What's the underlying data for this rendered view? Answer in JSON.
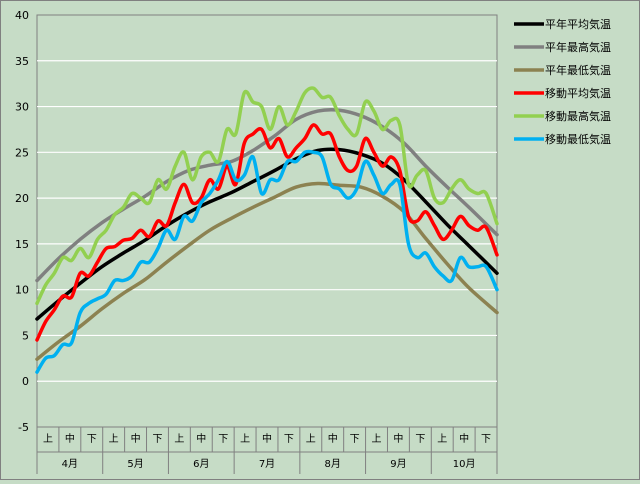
{
  "chart_data": {
    "type": "line",
    "x_unit": "day_of_season",
    "x_range": [
      0,
      213
    ],
    "ylim": [
      -5,
      40
    ],
    "y_ticks": [
      -5,
      0,
      5,
      10,
      15,
      20,
      25,
      30,
      35,
      40
    ],
    "grid": true,
    "legend_position": "right",
    "decade_labels": [
      "上",
      "中",
      "下"
    ],
    "months": [
      "4月",
      "5月",
      "6月",
      "7月",
      "8月",
      "9月",
      "10月"
    ],
    "series": [
      {
        "name": "平年平均気温",
        "color": "#000000",
        "x": [
          0,
          10,
          20,
          30,
          40,
          50,
          60,
          70,
          80,
          90,
          100,
          110,
          120,
          130,
          140,
          150,
          160,
          170,
          180,
          190,
          200,
          213
        ],
        "y": [
          6.8,
          8.8,
          10.7,
          12.5,
          14.0,
          15.4,
          17.0,
          18.4,
          19.6,
          20.6,
          21.8,
          23.0,
          24.3,
          25.2,
          25.3,
          24.8,
          23.8,
          22.0,
          19.6,
          17.1,
          14.8,
          11.8
        ]
      },
      {
        "name": "平年最高気温",
        "color": "#808080",
        "x": [
          0,
          10,
          20,
          30,
          40,
          50,
          60,
          70,
          80,
          90,
          100,
          110,
          120,
          130,
          140,
          150,
          160,
          170,
          180,
          190,
          200,
          213
        ],
        "y": [
          11.0,
          13.4,
          15.5,
          17.3,
          18.8,
          20.2,
          21.8,
          23.0,
          23.6,
          24.0,
          25.2,
          26.8,
          28.6,
          29.5,
          29.6,
          29.0,
          27.8,
          26.0,
          23.5,
          21.2,
          19.0,
          16.0
        ]
      },
      {
        "name": "平年最低気温",
        "color": "#8c8251",
        "x": [
          0,
          10,
          20,
          30,
          40,
          50,
          60,
          70,
          80,
          90,
          100,
          110,
          120,
          130,
          140,
          150,
          160,
          170,
          180,
          190,
          200,
          213
        ],
        "y": [
          2.4,
          4.3,
          6.0,
          7.9,
          9.6,
          11.1,
          13.0,
          14.8,
          16.5,
          17.8,
          19.0,
          20.1,
          21.2,
          21.6,
          21.4,
          21.2,
          20.2,
          18.5,
          15.6,
          12.8,
          10.2,
          7.5
        ]
      },
      {
        "name": "移動平均気温",
        "color": "#ff0000",
        "x": [
          0,
          4,
          8,
          12,
          16,
          20,
          24,
          28,
          32,
          36,
          40,
          44,
          48,
          52,
          56,
          60,
          64,
          68,
          72,
          76,
          80,
          84,
          88,
          92,
          96,
          100,
          104,
          108,
          112,
          116,
          120,
          124,
          128,
          132,
          136,
          140,
          144,
          148,
          152,
          156,
          160,
          164,
          168,
          172,
          176,
          180,
          184,
          188,
          192,
          196,
          200,
          204,
          208,
          213
        ],
        "y": [
          4.5,
          6.5,
          7.8,
          9.3,
          9.2,
          11.8,
          11.5,
          13.0,
          14.5,
          14.7,
          15.4,
          15.6,
          16.5,
          15.8,
          17.5,
          17.0,
          19.5,
          21.5,
          19.5,
          20.0,
          22.0,
          21.0,
          23.5,
          21.5,
          26.0,
          27.0,
          27.5,
          25.5,
          26.5,
          24.5,
          25.5,
          26.5,
          28.0,
          27.0,
          27.0,
          24.5,
          23.0,
          23.5,
          26.5,
          25.0,
          23.5,
          24.5,
          23.0,
          18.0,
          17.5,
          18.5,
          17.0,
          15.5,
          16.5,
          18.0,
          17.0,
          16.5,
          16.8,
          13.8
        ]
      },
      {
        "name": "移動最高気温",
        "color": "#92d050",
        "x": [
          0,
          4,
          8,
          12,
          16,
          20,
          24,
          28,
          32,
          36,
          40,
          44,
          48,
          52,
          56,
          60,
          64,
          68,
          72,
          76,
          80,
          84,
          88,
          92,
          96,
          100,
          104,
          108,
          112,
          116,
          120,
          124,
          128,
          132,
          136,
          140,
          144,
          148,
          152,
          156,
          160,
          164,
          168,
          172,
          176,
          180,
          184,
          188,
          192,
          196,
          200,
          204,
          208,
          213
        ],
        "y": [
          8.5,
          10.5,
          11.8,
          13.5,
          13.2,
          14.5,
          13.5,
          15.5,
          16.5,
          18.2,
          19.0,
          20.5,
          20.0,
          19.5,
          22.0,
          21.0,
          23.5,
          25.0,
          22.0,
          24.5,
          25.0,
          24.0,
          27.5,
          27.0,
          31.5,
          30.5,
          30.0,
          27.5,
          30.0,
          28.0,
          29.5,
          31.5,
          32.0,
          31.0,
          31.0,
          29.0,
          27.5,
          27.0,
          30.5,
          29.5,
          27.5,
          28.5,
          28.0,
          21.5,
          22.5,
          23.0,
          20.0,
          19.5,
          21.0,
          22.0,
          21.0,
          20.5,
          20.5,
          17.2
        ]
      },
      {
        "name": "移動最低気温",
        "color": "#00b0f0",
        "x": [
          0,
          4,
          8,
          12,
          16,
          20,
          24,
          28,
          32,
          36,
          40,
          44,
          48,
          52,
          56,
          60,
          64,
          68,
          72,
          76,
          80,
          84,
          88,
          92,
          96,
          100,
          104,
          108,
          112,
          116,
          120,
          124,
          128,
          132,
          136,
          140,
          144,
          148,
          152,
          156,
          160,
          164,
          168,
          172,
          176,
          180,
          184,
          188,
          192,
          196,
          200,
          204,
          208,
          213
        ],
        "y": [
          1.0,
          2.5,
          2.8,
          4.0,
          4.2,
          7.5,
          8.5,
          9.0,
          9.5,
          11.0,
          11.0,
          11.5,
          13.0,
          13.0,
          14.5,
          16.5,
          15.5,
          18.0,
          17.5,
          19.5,
          20.5,
          22.0,
          24.0,
          22.0,
          22.5,
          24.5,
          20.5,
          22.0,
          22.0,
          24.0,
          24.0,
          25.0,
          25.0,
          24.5,
          21.5,
          21.0,
          20.0,
          21.0,
          24.0,
          22.5,
          20.5,
          21.5,
          21.5,
          15.0,
          13.5,
          14.0,
          12.5,
          11.5,
          11.0,
          13.5,
          12.5,
          12.5,
          12.5,
          10.0
        ]
      }
    ]
  }
}
